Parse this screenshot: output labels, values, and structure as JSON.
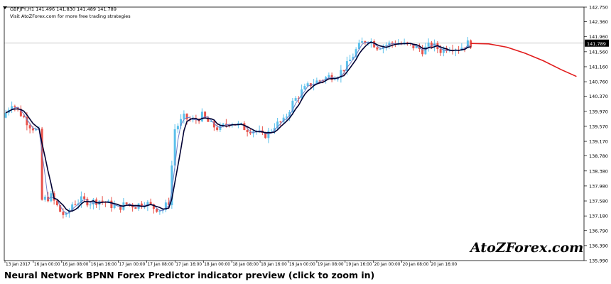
{
  "chart_header": {
    "symbol_line": "GBPJPY,H1  141.496 141.830 141.489 141.789",
    "tagline": "Visit AtoZForex.com for more free trading strategies"
  },
  "watermark_text": "AtoZForex.com",
  "caption": "Neural Network BPNN Forex Predictor indicator preview (click to zoom in)",
  "colors": {
    "bull": "#5bc0eb",
    "bear": "#e8524a",
    "ma_fast": "#000033",
    "ma_slow": "#6f7cc4",
    "forecast": "#e11b1b",
    "current_price_line": "#b8b8b8"
  },
  "current_price_label": "141.789",
  "chart_data": {
    "type": "candlestick",
    "symbol": "GBPJPY",
    "timeframe": "H1",
    "y_axis_ticks": [
      142.75,
      142.36,
      141.96,
      141.56,
      141.16,
      140.76,
      140.37,
      139.97,
      139.57,
      139.17,
      138.78,
      138.38,
      137.98,
      137.58,
      137.18,
      136.79,
      136.39,
      135.99
    ],
    "y_axis_tick_labels": [
      "142.750",
      "142.360",
      "141.960",
      "141.789",
      "141.560",
      "141.160",
      "140.760",
      "140.370",
      "139.970",
      "139.570",
      "139.170",
      "138.780",
      "138.380",
      "137.980",
      "137.580",
      "137.180",
      "136.790",
      "136.390",
      "135.990"
    ],
    "ylim": [
      135.99,
      142.75
    ],
    "x_axis_labels": [
      "13 Jan 2017",
      "16 Jan 00:00",
      "16 Jan 08:00",
      "16 Jan 16:00",
      "17 Jan 00:00",
      "17 Jan 08:00",
      "17 Jan 16:00",
      "18 Jan 00:00",
      "18 Jan 08:00",
      "18 Jan 16:00",
      "19 Jan 00:00",
      "19 Jan 08:00",
      "19 Jan 16:00",
      "20 Jan 00:00",
      "20 Jan 08:00",
      "20 Jan 16:00"
    ],
    "last_price": 141.789,
    "close_path": [
      [
        0,
        139.8
      ],
      [
        3,
        140.2
      ],
      [
        6,
        139.9
      ],
      [
        9,
        139.6
      ],
      [
        12,
        139.4
      ],
      [
        13,
        137.6
      ],
      [
        16,
        137.7
      ],
      [
        19,
        137.3
      ],
      [
        21,
        137.15
      ],
      [
        23,
        137.5
      ],
      [
        26,
        137.6
      ],
      [
        29,
        137.55
      ],
      [
        32,
        137.6
      ],
      [
        35,
        137.5
      ],
      [
        38,
        137.4
      ],
      [
        41,
        137.5
      ],
      [
        44,
        137.45
      ],
      [
        47,
        137.55
      ],
      [
        50,
        137.4
      ],
      [
        53,
        137.35
      ],
      [
        55,
        137.55
      ],
      [
        57,
        139.5
      ],
      [
        60,
        139.8
      ],
      [
        63,
        139.7
      ],
      [
        66,
        139.85
      ],
      [
        69,
        139.6
      ],
      [
        72,
        139.5
      ],
      [
        75,
        139.7
      ],
      [
        78,
        139.6
      ],
      [
        81,
        139.5
      ],
      [
        84,
        139.45
      ],
      [
        86,
        139.3
      ],
      [
        88,
        139.4
      ],
      [
        90,
        139.6
      ],
      [
        93,
        139.7
      ],
      [
        96,
        140.2
      ],
      [
        99,
        140.5
      ],
      [
        102,
        140.7
      ],
      [
        105,
        140.8
      ],
      [
        108,
        140.9
      ],
      [
        111,
        140.95
      ],
      [
        114,
        141.2
      ],
      [
        117,
        141.6
      ],
      [
        119,
        141.8
      ],
      [
        121,
        141.9
      ],
      [
        124,
        141.7
      ],
      [
        127,
        141.75
      ],
      [
        130,
        141.8
      ],
      [
        133,
        141.75
      ],
      [
        136,
        141.7
      ],
      [
        139,
        141.6
      ],
      [
        142,
        141.75
      ],
      [
        145,
        141.6
      ],
      [
        148,
        141.7
      ],
      [
        151,
        141.65
      ],
      [
        154,
        141.78
      ]
    ],
    "n_candles": 155,
    "forecast": [
      [
        154,
        141.78
      ],
      [
        160,
        141.77
      ],
      [
        166,
        141.68
      ],
      [
        172,
        141.52
      ],
      [
        178,
        141.32
      ],
      [
        184,
        141.08
      ],
      [
        189,
        140.9
      ]
    ],
    "series": [
      {
        "name": "candles",
        "kind": "candlestick"
      },
      {
        "name": "fast MA",
        "kind": "line"
      },
      {
        "name": "slow MA",
        "kind": "line"
      },
      {
        "name": "forecast",
        "kind": "line"
      }
    ]
  }
}
